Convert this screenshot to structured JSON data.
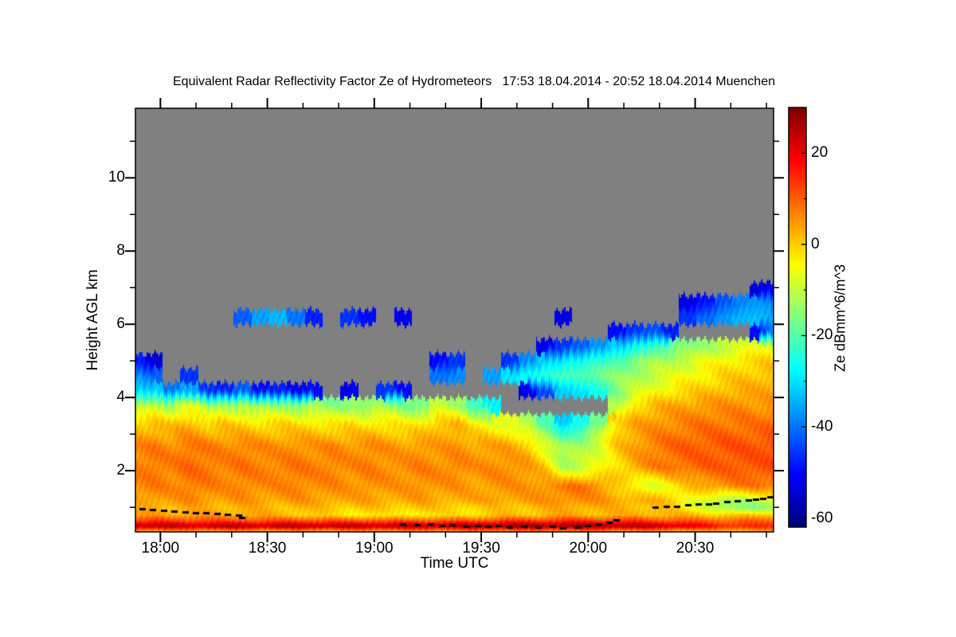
{
  "chart_data": {
    "type": "heatmap",
    "title": "Equivalent Radar Reflectivity Factor Ze of Hydrometeors   17:53 18.04.2014 - 20:52 18.04.2014 Muenchen",
    "x_axis": {
      "label": "Time UTC",
      "start_time": "17:53",
      "end_time": "20:52",
      "duration_min": 179,
      "major_ticks": [
        {
          "label": "18:00",
          "min": 7
        },
        {
          "label": "18:30",
          "min": 37
        },
        {
          "label": "19:00",
          "min": 67
        },
        {
          "label": "19:30",
          "min": 97
        },
        {
          "label": "20:00",
          "min": 127
        },
        {
          "label": "20:30",
          "min": 157
        }
      ],
      "minor_tick_mins": [
        17,
        27,
        47,
        57,
        77,
        87,
        107,
        117,
        137,
        147,
        167,
        177
      ]
    },
    "y_axis": {
      "label": "Height AGL km",
      "min_km": 0.35,
      "max_km": 11.9,
      "major_ticks": [
        2,
        4,
        6,
        8,
        10
      ],
      "minor_ticks": [
        1,
        3,
        5,
        7,
        9,
        11
      ]
    },
    "colorbar": {
      "label": "Ze dBmm^6/m^3",
      "min": -62,
      "max": 30,
      "major_ticks": [
        20,
        0,
        -20,
        -40,
        -60
      ],
      "minor_ticks": [
        10,
        -10,
        -30,
        -50
      ],
      "colormap": "jet",
      "no_data_color": "#808080"
    },
    "grid": {
      "comment": "values_dbz rows ordered bottom to top, matching heights_km; columns every 5 min from 17:53; null = no echo (gray)",
      "time_step_min": 5,
      "heights_km": [
        0.35,
        0.5,
        0.65,
        0.8,
        1.0,
        1.2,
        1.6,
        2.1,
        2.7,
        3.3,
        3.8,
        4.2,
        4.6,
        5.0,
        5.4,
        5.8,
        6.2,
        6.6,
        7.0
      ],
      "values_dbz": [
        [
          3,
          3,
          2,
          3,
          3,
          2,
          3,
          2,
          2,
          3,
          3,
          2,
          3,
          3,
          4,
          3,
          3,
          4,
          4,
          5,
          5,
          6,
          5,
          5,
          6,
          5,
          5,
          4,
          4,
          3,
          3,
          2,
          2,
          2,
          3,
          3,
          3
        ],
        [
          26,
          26,
          25,
          24,
          25,
          26,
          26,
          25,
          26,
          25,
          26,
          25,
          25,
          26,
          25,
          26,
          26,
          26,
          27,
          27,
          28,
          28,
          28,
          28,
          28,
          28,
          28,
          27,
          26,
          25,
          24,
          22,
          18,
          16,
          15,
          14,
          14
        ],
        [
          13,
          13,
          12,
          12,
          12,
          11,
          12,
          11,
          11,
          12,
          11,
          11,
          10,
          11,
          10,
          10,
          11,
          10,
          10,
          11,
          12,
          13,
          13,
          13,
          14,
          14,
          13,
          13,
          13,
          12,
          11,
          10,
          10,
          9,
          9,
          9,
          10
        ],
        [
          4,
          4,
          3,
          5,
          4,
          3,
          4,
          3,
          2,
          1,
          0,
          -2,
          -3,
          -2,
          -4,
          -3,
          -2,
          -3,
          -2,
          -1,
          0,
          1,
          1,
          2,
          3,
          3,
          2,
          2,
          3,
          3,
          2,
          2,
          1,
          0,
          0,
          1,
          1
        ],
        [
          2,
          3,
          2,
          3,
          2,
          2,
          3,
          2,
          1,
          2,
          1,
          1,
          0,
          1,
          0,
          0,
          1,
          0,
          0,
          -1,
          0,
          1,
          1,
          2,
          3,
          3,
          2,
          2,
          2,
          1,
          0,
          -4,
          -8,
          -14,
          -16,
          -15,
          -13
        ],
        [
          4,
          5,
          4,
          6,
          5,
          4,
          5,
          4,
          4,
          5,
          4,
          4,
          3,
          4,
          3,
          3,
          4,
          3,
          3,
          3,
          4,
          4,
          4,
          5,
          6,
          6,
          5,
          4,
          3,
          2,
          0,
          -5,
          -9,
          -12,
          -11,
          -9,
          -8
        ],
        [
          6,
          7,
          6,
          8,
          7,
          6,
          7,
          6,
          6,
          7,
          6,
          6,
          5,
          6,
          5,
          5,
          6,
          5,
          5,
          4,
          5,
          5,
          5,
          6,
          7,
          8,
          6,
          0,
          -6,
          -8,
          -4,
          0,
          4,
          6,
          7,
          8,
          8
        ],
        [
          7,
          8,
          7,
          9,
          8,
          7,
          8,
          7,
          7,
          8,
          7,
          7,
          6,
          7,
          6,
          6,
          7,
          6,
          7,
          5,
          6,
          6,
          5,
          0,
          -12,
          -10,
          -6,
          -2,
          3,
          6,
          8,
          9,
          10,
          10,
          11,
          11,
          11
        ],
        [
          6,
          7,
          6,
          8,
          7,
          6,
          7,
          6,
          5,
          6,
          5,
          6,
          5,
          6,
          5,
          4,
          5,
          4,
          5,
          4,
          4,
          3,
          0,
          -8,
          -14,
          -12,
          -8,
          0,
          4,
          7,
          9,
          10,
          10,
          11,
          11,
          11,
          12
        ],
        [
          0,
          1,
          0,
          2,
          -1,
          0,
          -1,
          -2,
          -1,
          -2,
          -2,
          -3,
          -2,
          -3,
          -2,
          -4,
          -3,
          1,
          2,
          -4,
          -6,
          -8,
          -12,
          -20,
          -32,
          -26,
          -16,
          0,
          3,
          5,
          6,
          7,
          8,
          8,
          8,
          8,
          9
        ],
        [
          -12,
          -10,
          -13,
          -6,
          -14,
          -12,
          -13,
          -15,
          -13,
          -15,
          -14,
          -16,
          -14,
          -16,
          -13,
          -16,
          -18,
          -10,
          -12,
          -22,
          -28,
          null,
          null,
          null,
          null,
          null,
          null,
          -12,
          -2,
          1,
          3,
          4,
          5,
          5,
          6,
          5,
          5
        ],
        [
          -30,
          -32,
          -40,
          -35,
          -46,
          -48,
          -42,
          -50,
          -48,
          -52,
          -50,
          null,
          -52,
          null,
          -46,
          -50,
          null,
          null,
          null,
          null,
          null,
          null,
          -52,
          -44,
          -32,
          -30,
          -26,
          -16,
          -10,
          -6,
          -3,
          -1,
          0,
          2,
          3,
          3,
          3
        ],
        [
          -36,
          -42,
          null,
          -46,
          null,
          null,
          null,
          null,
          null,
          null,
          null,
          null,
          null,
          null,
          null,
          null,
          null,
          -40,
          -38,
          null,
          -36,
          -30,
          -26,
          -23,
          -21,
          -20,
          -18,
          -15,
          -12,
          -10,
          -8,
          -5,
          -3,
          -1,
          0,
          1,
          2
        ],
        [
          -48,
          -54,
          null,
          null,
          null,
          null,
          null,
          null,
          null,
          null,
          null,
          null,
          null,
          null,
          null,
          null,
          null,
          -50,
          -46,
          null,
          null,
          -46,
          -38,
          -32,
          -29,
          -26,
          -23,
          -20,
          -17,
          -13,
          -11,
          -9,
          -6,
          -4,
          -2,
          -1,
          0
        ],
        [
          null,
          null,
          null,
          null,
          null,
          null,
          null,
          null,
          null,
          null,
          null,
          null,
          null,
          null,
          null,
          null,
          null,
          null,
          null,
          null,
          null,
          null,
          null,
          -52,
          -46,
          -42,
          -37,
          -32,
          -27,
          -22,
          -19,
          -16,
          -13,
          -11,
          -9,
          -6,
          -5
        ],
        [
          null,
          null,
          null,
          null,
          null,
          null,
          null,
          null,
          null,
          null,
          null,
          null,
          null,
          null,
          null,
          null,
          null,
          null,
          null,
          null,
          null,
          null,
          null,
          null,
          null,
          null,
          null,
          -50,
          -46,
          -43,
          -48,
          null,
          null,
          null,
          null,
          -50,
          -36
        ],
        [
          null,
          null,
          null,
          null,
          null,
          null,
          -42,
          -36,
          -34,
          -40,
          -48,
          null,
          -46,
          -50,
          null,
          -52,
          null,
          null,
          null,
          null,
          null,
          null,
          null,
          null,
          -53,
          null,
          null,
          null,
          null,
          null,
          null,
          -46,
          -41,
          -37,
          -34,
          -33,
          -36
        ],
        [
          null,
          null,
          null,
          null,
          null,
          null,
          null,
          null,
          null,
          null,
          null,
          null,
          null,
          null,
          null,
          null,
          null,
          null,
          null,
          null,
          null,
          null,
          null,
          null,
          null,
          null,
          null,
          null,
          null,
          null,
          null,
          -53,
          -49,
          -43,
          -39,
          -37,
          -39
        ],
        [
          null,
          null,
          null,
          null,
          null,
          null,
          null,
          null,
          null,
          null,
          null,
          null,
          null,
          null,
          null,
          null,
          null,
          null,
          null,
          null,
          null,
          null,
          null,
          null,
          null,
          null,
          null,
          null,
          null,
          null,
          null,
          null,
          null,
          null,
          null,
          -54,
          -52
        ]
      ]
    },
    "cloud_base_markers": [
      {
        "points": [
          [
            2,
            0.95
          ],
          [
            5,
            0.93
          ],
          [
            8,
            0.92
          ],
          [
            11,
            0.9
          ],
          [
            14,
            0.88
          ],
          [
            17,
            0.86
          ],
          [
            20,
            0.84
          ],
          [
            23,
            0.82
          ],
          [
            26,
            0.8
          ],
          [
            29,
            0.79
          ]
        ]
      },
      {
        "points": [
          [
            30,
            0.72
          ],
          [
            75,
            0.55
          ],
          [
            79,
            0.52
          ],
          [
            83,
            0.55
          ],
          [
            86,
            0.5
          ],
          [
            89,
            0.52
          ],
          [
            93,
            0.49
          ],
          [
            96,
            0.5
          ],
          [
            99,
            0.47
          ]
        ]
      },
      {
        "points": [
          [
            102,
            0.5
          ],
          [
            105,
            0.46
          ],
          [
            109,
            0.48
          ],
          [
            113,
            0.45
          ],
          [
            117,
            0.47
          ],
          [
            120,
            0.44
          ],
          [
            124,
            0.46
          ],
          [
            127,
            0.5
          ],
          [
            130,
            0.55
          ],
          [
            133,
            0.6
          ],
          [
            135,
            0.65
          ]
        ]
      },
      {
        "points": [
          [
            146,
            1.0
          ],
          [
            149,
            1.03
          ],
          [
            152,
            1.02
          ],
          [
            155,
            1.06
          ],
          [
            158,
            1.08
          ],
          [
            161,
            1.1
          ],
          [
            163,
            1.12
          ],
          [
            166,
            1.15
          ],
          [
            169,
            1.17
          ],
          [
            172,
            1.2
          ],
          [
            174,
            1.22
          ],
          [
            176,
            1.25
          ],
          [
            178,
            1.28
          ]
        ]
      }
    ]
  }
}
